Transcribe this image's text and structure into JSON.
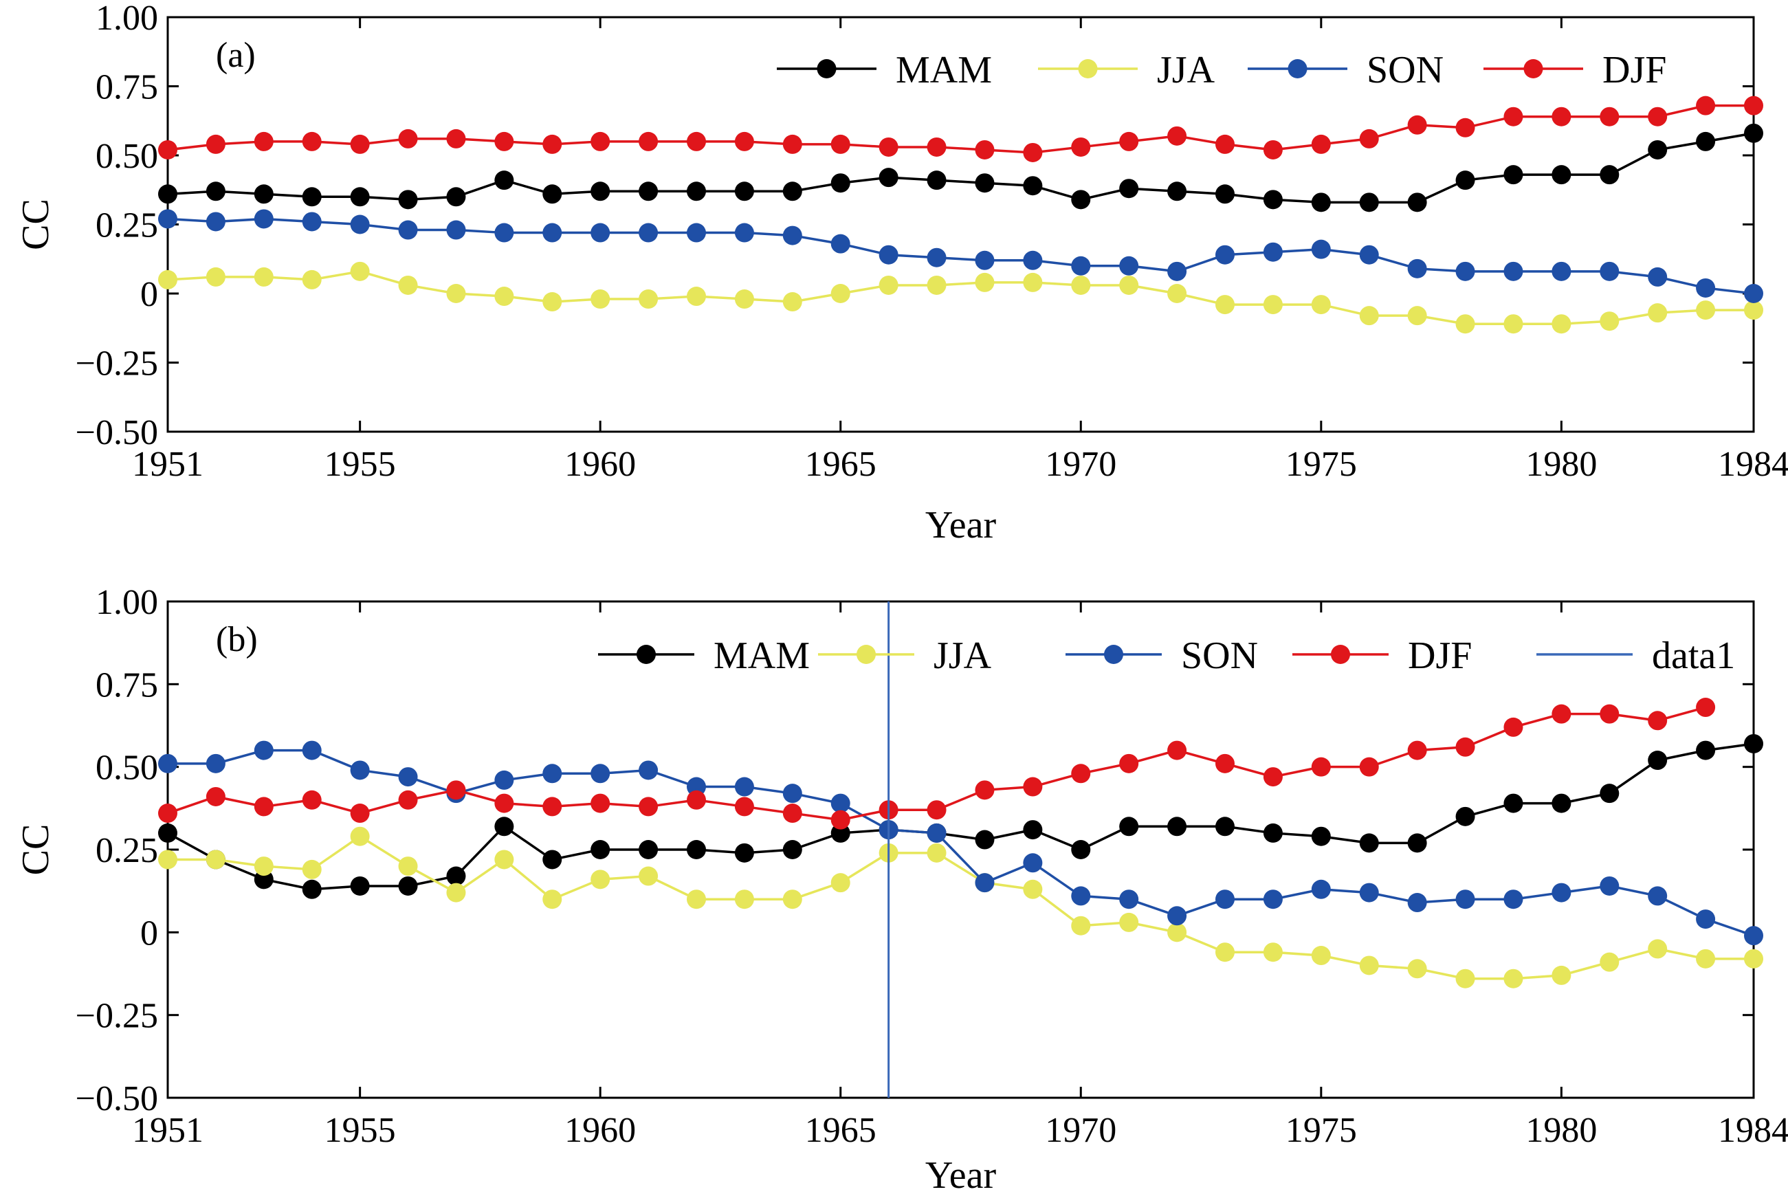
{
  "colors": {
    "MAM": "#000000",
    "JJA": "#e6e65a",
    "SON": "#1f4fa6",
    "DJF": "#e0161b",
    "data1": "#3a68b8"
  },
  "chart_data": [
    {
      "type": "line",
      "panel_label": "(a)",
      "title": "",
      "xlabel": "Year",
      "ylabel": "CC",
      "xlim": [
        1951,
        1984
      ],
      "ylim": [
        -0.5,
        1.0
      ],
      "xticks": [
        1951,
        1955,
        1960,
        1965,
        1970,
        1975,
        1980,
        1984
      ],
      "yticks": [
        -0.5,
        -0.25,
        0,
        0.25,
        0.5,
        0.75,
        1.0
      ],
      "ytick_labels": [
        "−0.50",
        "−0.25",
        "0",
        "0.25",
        "0.50",
        "0.75",
        "1.00"
      ],
      "legend": "top-right",
      "x": [
        1951,
        1952,
        1953,
        1954,
        1955,
        1956,
        1957,
        1958,
        1959,
        1960,
        1961,
        1962,
        1963,
        1964,
        1965,
        1966,
        1967,
        1968,
        1969,
        1970,
        1971,
        1972,
        1973,
        1974,
        1975,
        1976,
        1977,
        1978,
        1979,
        1980,
        1981,
        1982,
        1983,
        1984
      ],
      "series": [
        {
          "name": "MAM",
          "values": [
            0.36,
            0.37,
            0.36,
            0.35,
            0.35,
            0.34,
            0.35,
            0.41,
            0.36,
            0.37,
            0.37,
            0.37,
            0.37,
            0.37,
            0.4,
            0.42,
            0.41,
            0.4,
            0.39,
            0.34,
            0.38,
            0.37,
            0.36,
            0.34,
            0.33,
            0.33,
            0.33,
            0.41,
            0.43,
            0.43,
            0.43,
            0.52,
            0.55,
            0.58
          ]
        },
        {
          "name": "JJA",
          "values": [
            0.05,
            0.06,
            0.06,
            0.05,
            0.08,
            0.03,
            0.0,
            -0.01,
            -0.03,
            -0.02,
            -0.02,
            -0.01,
            -0.02,
            -0.03,
            0.0,
            0.03,
            0.03,
            0.04,
            0.04,
            0.03,
            0.03,
            0.0,
            -0.04,
            -0.04,
            -0.04,
            -0.08,
            -0.08,
            -0.11,
            -0.11,
            -0.11,
            -0.1,
            -0.07,
            -0.06,
            -0.06
          ]
        },
        {
          "name": "SON",
          "values": [
            0.27,
            0.26,
            0.27,
            0.26,
            0.25,
            0.23,
            0.23,
            0.22,
            0.22,
            0.22,
            0.22,
            0.22,
            0.22,
            0.21,
            0.18,
            0.14,
            0.13,
            0.12,
            0.12,
            0.1,
            0.1,
            0.08,
            0.14,
            0.15,
            0.16,
            0.14,
            0.09,
            0.08,
            0.08,
            0.08,
            0.08,
            0.06,
            0.02,
            0.0
          ]
        },
        {
          "name": "DJF",
          "values": [
            0.52,
            0.54,
            0.55,
            0.55,
            0.54,
            0.56,
            0.56,
            0.55,
            0.54,
            0.55,
            0.55,
            0.55,
            0.55,
            0.54,
            0.54,
            0.53,
            0.53,
            0.52,
            0.51,
            0.53,
            0.55,
            0.57,
            0.54,
            0.52,
            0.54,
            0.56,
            0.61,
            0.6,
            0.64,
            0.64,
            0.64,
            0.64,
            0.68,
            0.68
          ]
        }
      ]
    },
    {
      "type": "line",
      "panel_label": "(b)",
      "title": "",
      "xlabel": "Year",
      "ylabel": "CC",
      "xlim": [
        1951,
        1984
      ],
      "ylim": [
        -0.5,
        1.0
      ],
      "xticks": [
        1951,
        1955,
        1960,
        1965,
        1970,
        1975,
        1980,
        1984
      ],
      "yticks": [
        -0.5,
        -0.25,
        0,
        0.25,
        0.5,
        0.75,
        1.0
      ],
      "ytick_labels": [
        "−0.50",
        "−0.25",
        "0",
        "0.25",
        "0.50",
        "0.75",
        "1.00"
      ],
      "legend": "top-right",
      "x": [
        1951,
        1952,
        1953,
        1954,
        1955,
        1956,
        1957,
        1958,
        1959,
        1960,
        1961,
        1962,
        1963,
        1964,
        1965,
        1966,
        1967,
        1968,
        1969,
        1970,
        1971,
        1972,
        1973,
        1974,
        1975,
        1976,
        1977,
        1978,
        1979,
        1980,
        1981,
        1982,
        1983,
        1984
      ],
      "series": [
        {
          "name": "MAM",
          "values": [
            0.3,
            0.22,
            0.16,
            0.13,
            0.14,
            0.14,
            0.17,
            0.32,
            0.22,
            0.25,
            0.25,
            0.25,
            0.24,
            0.25,
            0.3,
            0.31,
            0.3,
            0.28,
            0.31,
            0.25,
            0.32,
            0.32,
            0.32,
            0.3,
            0.29,
            0.27,
            0.27,
            0.35,
            0.39,
            0.39,
            0.42,
            0.52,
            0.55,
            0.57
          ]
        },
        {
          "name": "JJA",
          "values": [
            0.22,
            0.22,
            0.2,
            0.19,
            0.29,
            0.2,
            0.12,
            0.22,
            0.1,
            0.16,
            0.17,
            0.1,
            0.1,
            0.1,
            0.15,
            0.24,
            0.24,
            0.15,
            0.13,
            0.02,
            0.03,
            0.0,
            -0.06,
            -0.06,
            -0.07,
            -0.1,
            -0.11,
            -0.14,
            -0.14,
            -0.13,
            -0.09,
            -0.05,
            -0.08,
            -0.08
          ]
        },
        {
          "name": "SON",
          "values": [
            0.51,
            0.51,
            0.55,
            0.55,
            0.49,
            0.47,
            0.42,
            0.46,
            0.48,
            0.48,
            0.49,
            0.44,
            0.44,
            0.42,
            0.39,
            0.31,
            0.3,
            0.15,
            0.21,
            0.11,
            0.1,
            0.05,
            0.1,
            0.1,
            0.13,
            0.12,
            0.09,
            0.1,
            0.1,
            0.12,
            0.14,
            0.11,
            0.04,
            -0.01
          ]
        },
        {
          "name": "DJF",
          "values": [
            0.36,
            0.41,
            0.38,
            0.4,
            0.36,
            0.4,
            0.43,
            0.39,
            0.38,
            0.39,
            0.38,
            0.4,
            0.38,
            0.36,
            0.34,
            0.37,
            0.37,
            0.43,
            0.44,
            0.48,
            0.51,
            0.55,
            0.51,
            0.47,
            0.5,
            0.5,
            0.55,
            0.56,
            0.62,
            0.66,
            0.66,
            0.64,
            0.68,
            null
          ]
        }
      ],
      "vline": {
        "name": "data1",
        "x": 1966
      }
    }
  ]
}
